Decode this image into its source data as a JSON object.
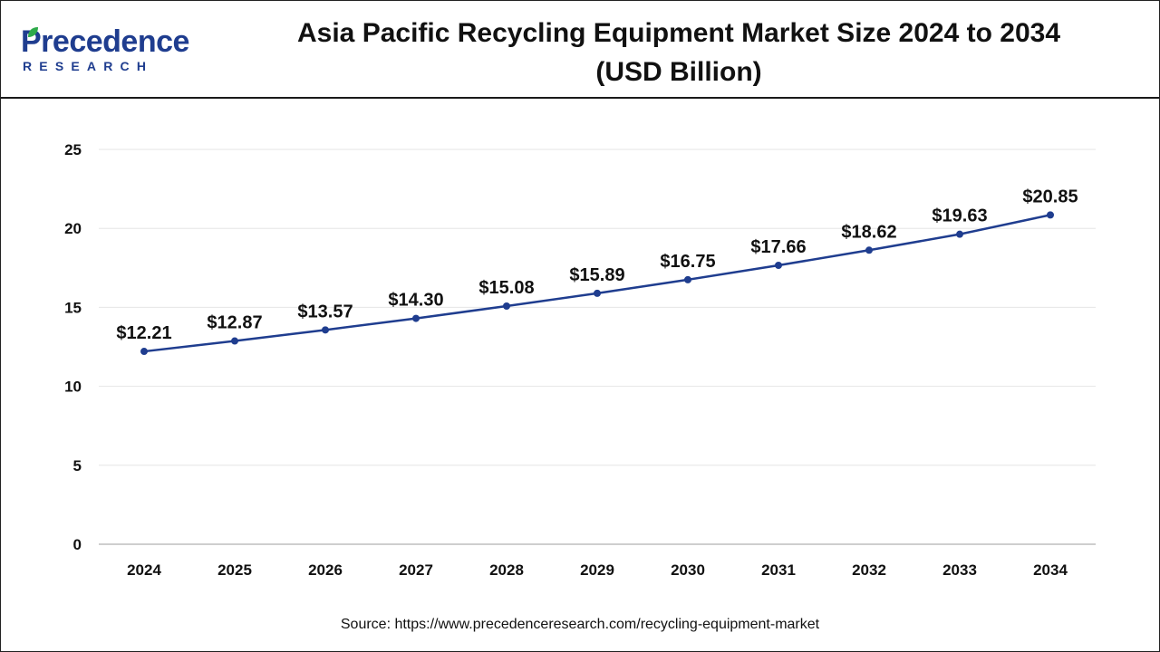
{
  "brand": {
    "name": "Precedence",
    "sub": "RESEARCH",
    "color": "#1f3d8f",
    "leaf_color": "#2eaa4a"
  },
  "chart_data": {
    "type": "line",
    "title": "Asia Pacific Recycling Equipment Market Size 2024 to 2034 (USD Billion)",
    "title_line1": "Asia Pacific Recycling Equipment Market Size 2024 to 2034",
    "title_line2": "(USD Billion)",
    "categories": [
      "2024",
      "2025",
      "2026",
      "2027",
      "2028",
      "2029",
      "2030",
      "2031",
      "2032",
      "2033",
      "2034"
    ],
    "series": [
      {
        "values": [
          12.21,
          12.87,
          13.57,
          14.3,
          15.08,
          15.89,
          16.75,
          17.66,
          18.62,
          19.63,
          20.85
        ],
        "labels": [
          "$12.21",
          "$12.87",
          "$13.57",
          "$14.30",
          "$15.08",
          "$15.89",
          "$16.75",
          "$17.66",
          "$18.62",
          "$19.63",
          "$20.85"
        ],
        "color": "#1f3d8f"
      }
    ],
    "ylim": [
      0,
      25
    ],
    "yticks": [
      "0",
      "5",
      "10",
      "15",
      "20",
      "25"
    ],
    "ytick_values": [
      0,
      5,
      10,
      15,
      20,
      25
    ],
    "grid": true,
    "xlabel": "",
    "ylabel": ""
  },
  "source": "Source: https://www.precedenceresearch.com/recycling-equipment-market"
}
